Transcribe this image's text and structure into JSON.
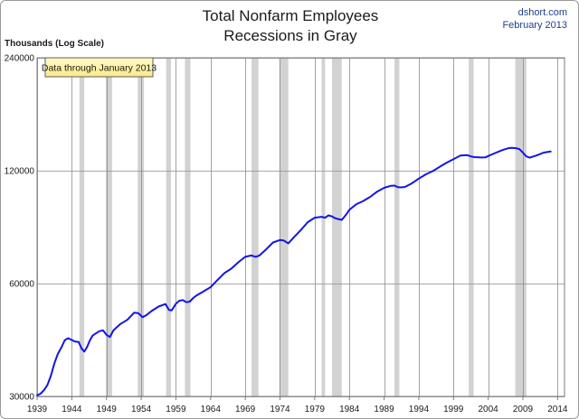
{
  "chart_data": {
    "type": "line",
    "title": [
      "Total Nonfarm Employees",
      "Recessions in Gray"
    ],
    "source": [
      "dshort.com",
      "February 2013"
    ],
    "ylabel": "Thousands (Log Scale)",
    "annotation": "Data through January 2013",
    "y_scale": "log",
    "ylim": [
      30000,
      240000
    ],
    "yticks": [
      30000,
      60000,
      120000,
      240000
    ],
    "ytick_labels": [
      "30000",
      "60000",
      "120000",
      "240000"
    ],
    "xlim": [
      1939,
      2015
    ],
    "xticks": [
      1939,
      1944,
      1949,
      1954,
      1959,
      1964,
      1969,
      1974,
      1979,
      1984,
      1989,
      1994,
      1999,
      2004,
      2009,
      2014
    ],
    "xtick_labels": [
      "1939",
      "1944",
      "1949",
      "1954",
      "1959",
      "1964",
      "1969",
      "1974",
      "1979",
      "1984",
      "1989",
      "1994",
      "1999",
      "2004",
      "2009",
      "2014"
    ],
    "grid": true,
    "recessions": [
      [
        1945.1,
        1945.8
      ],
      [
        1948.9,
        1949.8
      ],
      [
        1953.5,
        1954.4
      ],
      [
        1957.6,
        1958.3
      ],
      [
        1960.3,
        1961.1
      ],
      [
        1969.9,
        1970.9
      ],
      [
        1973.9,
        1975.2
      ],
      [
        1980.0,
        1980.5
      ],
      [
        1981.5,
        1982.9
      ],
      [
        1990.5,
        1991.2
      ],
      [
        2001.2,
        2001.9
      ],
      [
        2007.9,
        2009.5
      ]
    ],
    "series": [
      {
        "color": "#1414e6",
        "x": [
          1939.0,
          1939.5,
          1940.0,
          1940.5,
          1941.0,
          1941.5,
          1942.0,
          1942.5,
          1943.0,
          1943.5,
          1944.0,
          1944.5,
          1945.0,
          1945.4,
          1945.8,
          1946.2,
          1946.6,
          1947.0,
          1947.5,
          1948.0,
          1948.5,
          1949.0,
          1949.5,
          1950.0,
          1950.5,
          1951.0,
          1952.0,
          1953.0,
          1953.6,
          1954.2,
          1954.8,
          1955.5,
          1956.5,
          1957.5,
          1958.0,
          1958.4,
          1959.0,
          1959.5,
          1960.0,
          1960.5,
          1961.0,
          1961.5,
          1962.0,
          1963.0,
          1964.0,
          1965.0,
          1966.0,
          1967.0,
          1968.0,
          1969.0,
          1969.9,
          1970.5,
          1971.0,
          1972.0,
          1973.0,
          1974.0,
          1974.5,
          1975.2,
          1976.0,
          1977.0,
          1978.0,
          1979.0,
          1980.0,
          1980.5,
          1981.0,
          1981.5,
          1982.0,
          1982.9,
          1983.5,
          1984.0,
          1985.0,
          1986.0,
          1987.0,
          1988.0,
          1989.0,
          1990.0,
          1990.5,
          1991.0,
          1991.5,
          1992.0,
          1993.0,
          1994.0,
          1995.0,
          1996.0,
          1997.0,
          1998.0,
          1999.0,
          2000.0,
          2001.0,
          2001.5,
          2002.0,
          2003.0,
          2003.6,
          2004.0,
          2005.0,
          2006.0,
          2007.0,
          2007.5,
          2008.0,
          2008.5,
          2009.0,
          2009.5,
          2010.0,
          2011.0,
          2012.0,
          2013.0
        ],
        "y": [
          30200,
          30500,
          31200,
          32200,
          34100,
          36800,
          39000,
          40500,
          42400,
          42900,
          42400,
          42000,
          41900,
          40300,
          39500,
          40600,
          42300,
          43600,
          44200,
          44800,
          45000,
          43800,
          43200,
          45000,
          45900,
          46800,
          48000,
          50200,
          50000,
          48800,
          49500,
          50700,
          52100,
          52900,
          51000,
          50900,
          53000,
          54000,
          54200,
          53500,
          53700,
          54900,
          55800,
          57200,
          58700,
          61300,
          64000,
          65800,
          68400,
          70700,
          71300,
          70700,
          71200,
          74000,
          77200,
          78400,
          78200,
          76800,
          79700,
          83300,
          87500,
          89900,
          90400,
          89900,
          91200,
          90600,
          89500,
          88700,
          91500,
          94400,
          97700,
          99600,
          102200,
          105500,
          108000,
          109400,
          109500,
          108400,
          108300,
          108600,
          111000,
          114300,
          117300,
          119700,
          122800,
          125900,
          128800,
          131700,
          132000,
          131000,
          130400,
          130100,
          130200,
          131300,
          133700,
          136100,
          137900,
          138000,
          137800,
          137000,
          134000,
          131000,
          130000,
          131800,
          134100,
          135000
        ]
      }
    ]
  }
}
